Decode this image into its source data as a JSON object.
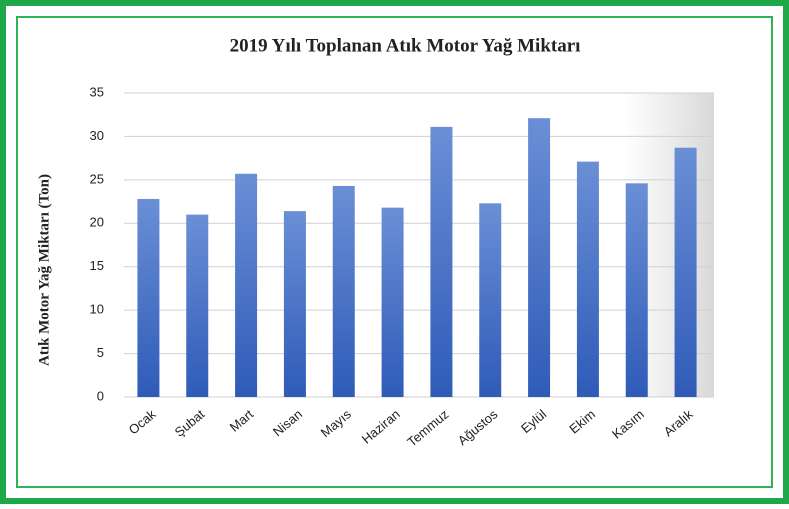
{
  "chart_data": {
    "type": "bar",
    "title": "2019 Yılı Toplanan  Atık Motor Yağ Miktarı",
    "y_label": "Atık  Motor Yağ Miktarı (Ton)",
    "categories": [
      "Ocak",
      "Şubat",
      "Mart",
      "Nisan",
      "Mayıs",
      "Haziran",
      "Temmuz",
      "Ağustos",
      "Eylül",
      "Ekim",
      "Kasım",
      "Aralık"
    ],
    "values": [
      22.8,
      21,
      25.7,
      21.4,
      24.3,
      21.8,
      31.1,
      22.3,
      32.1,
      27.1,
      24.6,
      28.7
    ],
    "color": "#4472c4",
    "ylim": [
      0,
      35
    ],
    "yticks": [
      0,
      5,
      10,
      15,
      20,
      25,
      30,
      35
    ],
    "grid": true
  }
}
